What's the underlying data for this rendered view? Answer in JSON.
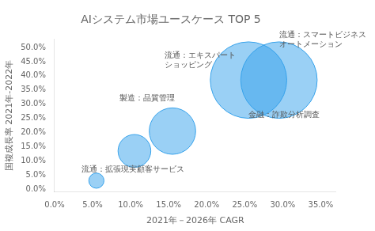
{
  "chart_data": {
    "type": "bubble",
    "title": "AIシステム市場ユースケース TOP 5",
    "xlabel": "2021年－2026年 CAGR",
    "ylabel": "国複成長率 2021年-2022年",
    "xlim": [
      0.0,
      0.37
    ],
    "ylim": [
      -0.01,
      0.53
    ],
    "xticks": [
      {
        "value": 0.0,
        "label": "0.0%"
      },
      {
        "value": 0.05,
        "label": "5.0%"
      },
      {
        "value": 0.1,
        "label": "10.0%"
      },
      {
        "value": 0.15,
        "label": "15.0%"
      },
      {
        "value": 0.2,
        "label": "20.0%"
      },
      {
        "value": 0.25,
        "label": "25.0%"
      },
      {
        "value": 0.3,
        "label": "30.0%"
      },
      {
        "value": 0.35,
        "label": "35.0%"
      }
    ],
    "yticks": [
      {
        "value": 0.0,
        "label": "0.0%"
      },
      {
        "value": 0.05,
        "label": "5.0%"
      },
      {
        "value": 0.1,
        "label": "10.0%"
      },
      {
        "value": 0.15,
        "label": "15.0%"
      },
      {
        "value": 0.2,
        "label": "20.0%"
      },
      {
        "value": 0.25,
        "label": "25.0%"
      },
      {
        "value": 0.3,
        "label": "30.0%"
      },
      {
        "value": 0.35,
        "label": "35.0%"
      },
      {
        "value": 0.4,
        "label": "40.0%"
      },
      {
        "value": 0.45,
        "label": "45.0%"
      },
      {
        "value": 0.5,
        "label": "50.0%"
      }
    ],
    "points": [
      {
        "x": 0.055,
        "y": 0.03,
        "size": 150
      },
      {
        "x": 0.105,
        "y": 0.135,
        "size": 700
      },
      {
        "x": 0.155,
        "y": 0.205,
        "size": 1400
      },
      {
        "x": 0.255,
        "y": 0.385,
        "size": 3800
      },
      {
        "x": 0.295,
        "y": 0.385,
        "size": 3800
      }
    ],
    "annotations": [
      {
        "text": "流通：拡張現実顧客サービス",
        "x": 0.035,
        "y": 0.055
      },
      {
        "text": "製造：品質管理",
        "x": 0.085,
        "y": 0.305
      },
      {
        "text": "流通：エキスパート\nショッピング",
        "x": 0.145,
        "y": 0.425
      },
      {
        "text": "金融：詐欺分析調査",
        "x": 0.255,
        "y": 0.275
      },
      {
        "text": "流通：スマートビジネス\nオートメーション",
        "x": 0.295,
        "y": 0.495
      }
    ],
    "grid": false
  }
}
